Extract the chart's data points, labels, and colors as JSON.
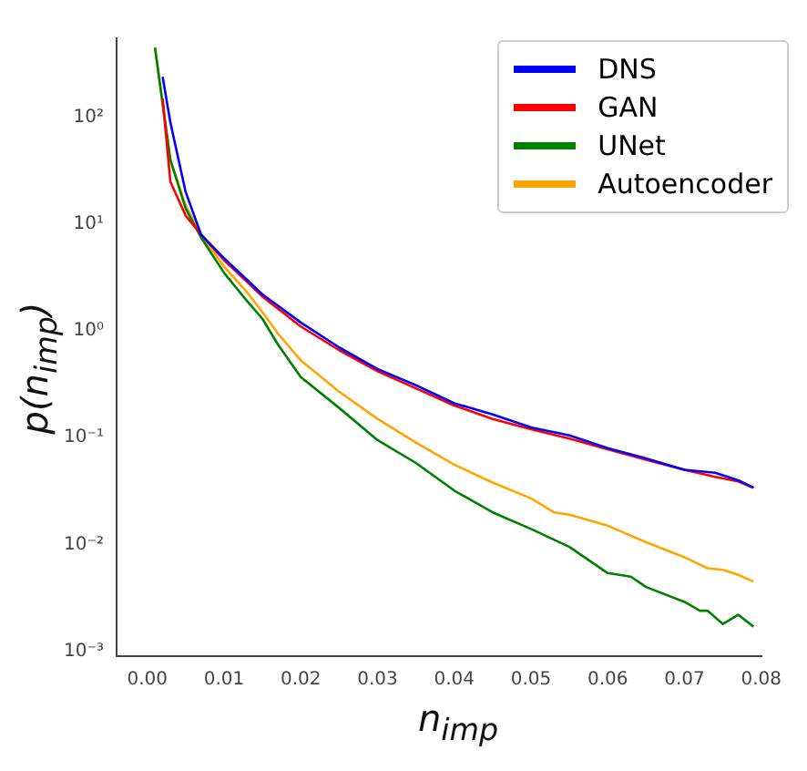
{
  "chart_data": {
    "type": "line",
    "xlabel": "n$_{imp}$",
    "ylabel": "p(n$_{imp}$)",
    "series": [
      {
        "name": "DNS",
        "color": "#0000ff",
        "x": [
          0.002,
          0.003,
          0.005,
          0.007,
          0.01,
          0.015,
          0.02,
          0.025,
          0.03,
          0.035,
          0.04,
          0.045,
          0.05,
          0.055,
          0.06,
          0.065,
          0.07,
          0.074,
          0.077,
          0.079
        ],
        "values": [
          240,
          90,
          20,
          8,
          4.8,
          2.2,
          1.2,
          0.7,
          0.44,
          0.31,
          0.21,
          0.165,
          0.125,
          0.105,
          0.08,
          0.064,
          0.05,
          0.047,
          0.04,
          0.034
        ]
      },
      {
        "name": "GAN",
        "color": "#ff0000",
        "x": [
          0.002,
          0.003,
          0.005,
          0.007,
          0.01,
          0.015,
          0.02,
          0.025,
          0.03,
          0.035,
          0.04,
          0.045,
          0.05,
          0.055,
          0.06,
          0.065,
          0.07,
          0.074,
          0.077,
          0.079
        ],
        "values": [
          150,
          25,
          12,
          8,
          4.6,
          2.1,
          1.1,
          0.66,
          0.42,
          0.29,
          0.2,
          0.15,
          0.12,
          0.098,
          0.078,
          0.062,
          0.05,
          0.043,
          0.039,
          0.034
        ]
      },
      {
        "name": "UNet",
        "color": "#008000",
        "x": [
          0.001,
          0.003,
          0.005,
          0.007,
          0.01,
          0.013,
          0.015,
          0.017,
          0.02,
          0.025,
          0.03,
          0.035,
          0.04,
          0.045,
          0.05,
          0.055,
          0.06,
          0.063,
          0.065,
          0.07,
          0.072,
          0.073,
          0.075,
          0.077,
          0.079
        ],
        "values": [
          450,
          40,
          14,
          7.5,
          3.5,
          1.9,
          1.3,
          0.75,
          0.37,
          0.19,
          0.095,
          0.058,
          0.032,
          0.02,
          0.014,
          0.0095,
          0.0054,
          0.005,
          0.004,
          0.0029,
          0.0024,
          0.0024,
          0.0018,
          0.0022,
          0.0017
        ]
      },
      {
        "name": "Autoencoder",
        "color": "#ffa500",
        "x": [
          0.001,
          0.003,
          0.005,
          0.007,
          0.01,
          0.013,
          0.015,
          0.017,
          0.02,
          0.025,
          0.03,
          0.035,
          0.04,
          0.045,
          0.05,
          0.053,
          0.055,
          0.06,
          0.065,
          0.07,
          0.073,
          0.075,
          0.077,
          0.079
        ],
        "values": [
          450,
          40,
          15,
          8,
          4,
          2.3,
          1.5,
          0.95,
          0.53,
          0.27,
          0.15,
          0.09,
          0.056,
          0.038,
          0.027,
          0.02,
          0.019,
          0.015,
          0.0105,
          0.0076,
          0.006,
          0.0058,
          0.0052,
          0.0045
        ]
      }
    ],
    "xlim": [
      -0.004,
      0.08
    ],
    "xticks": [
      {
        "value": 0,
        "label": "0.00"
      },
      {
        "value": 0.01,
        "label": "0.01"
      },
      {
        "value": 0.02,
        "label": "0.02"
      },
      {
        "value": 0.03,
        "label": "0.03"
      },
      {
        "value": 0.04,
        "label": "0.04"
      },
      {
        "value": 0.05,
        "label": "0.05"
      },
      {
        "value": 0.06,
        "label": "0.06"
      },
      {
        "value": 0.07,
        "label": "0.07"
      },
      {
        "value": 0.08,
        "label": "0.08"
      }
    ],
    "ylim": [
      0.0009,
      550
    ],
    "yticks": [
      {
        "value": 0.001,
        "label": "10⁻³"
      },
      {
        "value": 0.01,
        "label": "10⁻²"
      },
      {
        "value": 0.1,
        "label": "10⁻¹"
      },
      {
        "value": 1,
        "label": "10⁰"
      },
      {
        "value": 10,
        "label": "10¹"
      },
      {
        "value": 100,
        "label": "10²"
      }
    ],
    "log": "y",
    "grid": false,
    "legend": "top right",
    "marker": "none",
    "line_style": "solid"
  }
}
